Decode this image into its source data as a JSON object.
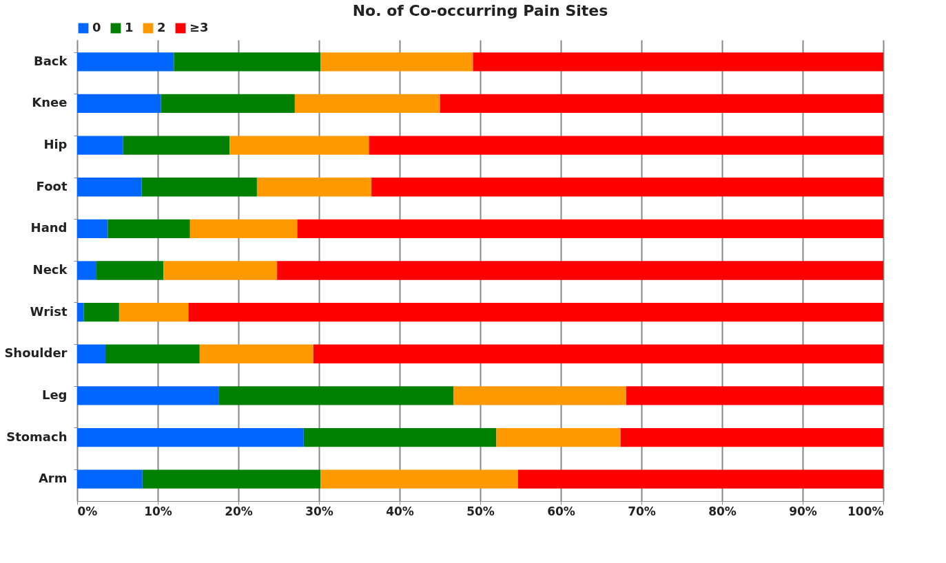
{
  "chart_data": {
    "type": "bar",
    "orientation": "horizontal",
    "stacked": true,
    "title": "No. of Co-occurring Pain Sites",
    "categories": [
      "Back",
      "Knee",
      "Hip",
      "Foot",
      "Hand",
      "Neck",
      "Wrist",
      "Shoulder",
      "Leg",
      "Stomach",
      "Arm"
    ],
    "series": [
      {
        "name": "0",
        "color": "#0066ff",
        "values": [
          12.0,
          10.4,
          5.7,
          8.0,
          3.8,
          2.4,
          0.8,
          3.5,
          17.6,
          28.1,
          8.1
        ]
      },
      {
        "name": "1",
        "color": "#008000",
        "values": [
          18.2,
          16.6,
          13.2,
          14.3,
          10.2,
          8.3,
          4.4,
          11.7,
          29.1,
          23.9,
          22.1
        ]
      },
      {
        "name": "2",
        "color": "#ff9900",
        "values": [
          18.9,
          18.0,
          17.3,
          14.2,
          13.3,
          14.1,
          8.6,
          14.1,
          21.4,
          15.4,
          24.5
        ]
      },
      {
        "name": "≥3",
        "color": "#ff0000",
        "values": [
          50.9,
          55.0,
          63.8,
          63.5,
          72.7,
          75.2,
          86.2,
          70.7,
          31.9,
          32.6,
          45.3
        ]
      }
    ],
    "xlim": [
      0,
      100
    ],
    "xticks": [
      {
        "value": 0,
        "label": "0%"
      },
      {
        "value": 10,
        "label": "10%"
      },
      {
        "value": 20,
        "label": "20%"
      },
      {
        "value": 30,
        "label": "30%"
      },
      {
        "value": 40,
        "label": "40%"
      },
      {
        "value": 50,
        "label": "50%"
      },
      {
        "value": 60,
        "label": "60%"
      },
      {
        "value": 70,
        "label": "70%"
      },
      {
        "value": 80,
        "label": "80%"
      },
      {
        "value": 90,
        "label": "90%"
      },
      {
        "value": 100,
        "label": "100%"
      }
    ],
    "grid": "x",
    "legend": "top"
  }
}
